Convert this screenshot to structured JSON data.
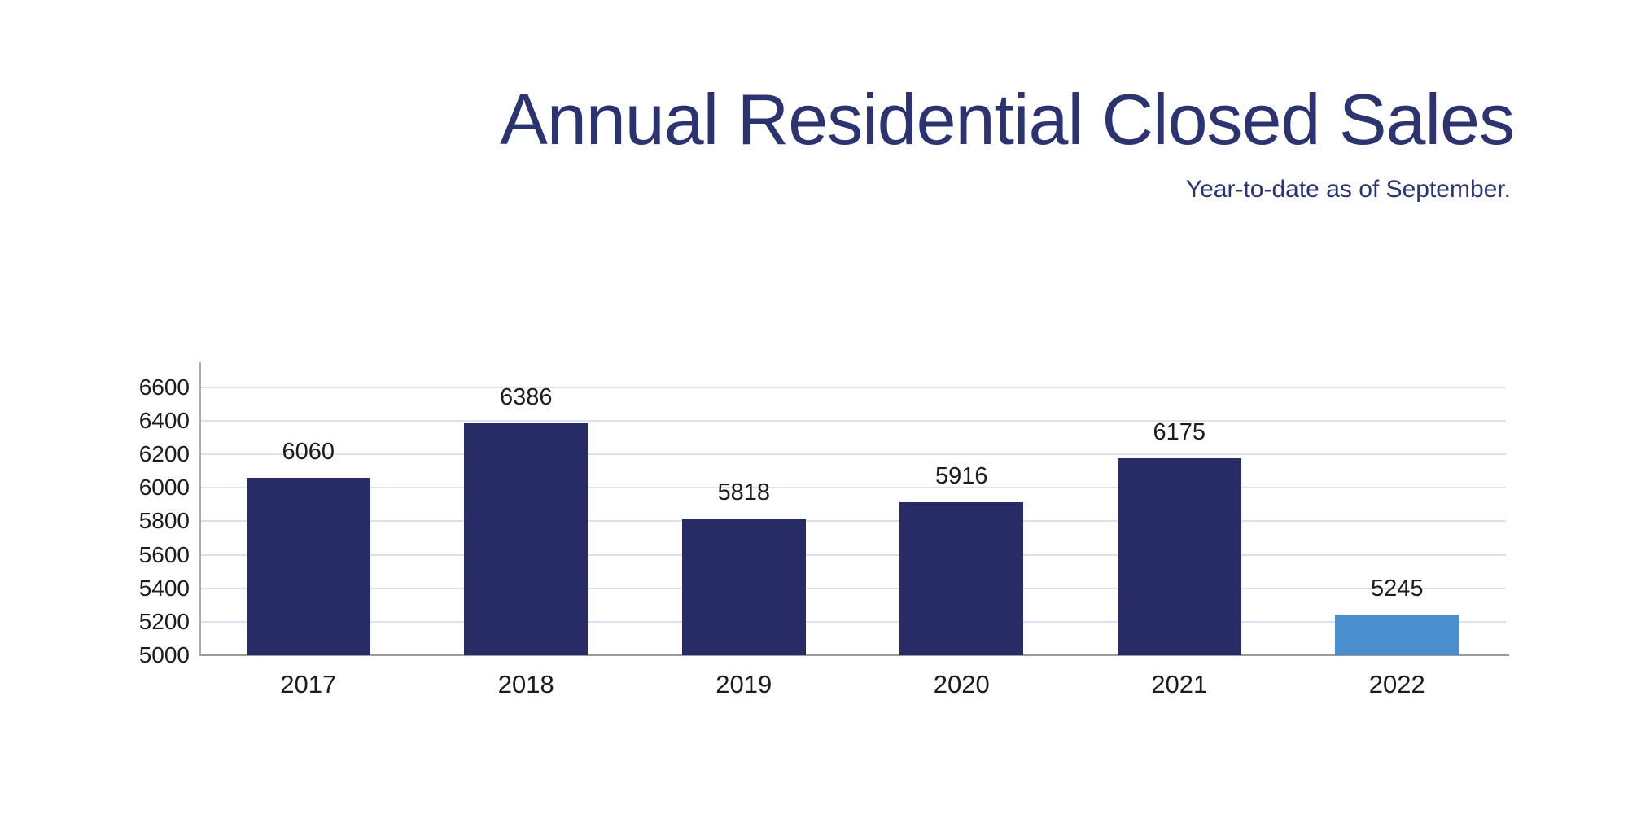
{
  "header": {
    "title": "Annual Residential Closed Sales",
    "subtitle": "Year-to-date as of September."
  },
  "chart_data": {
    "type": "bar",
    "title": "Annual Residential Closed Sales",
    "subtitle": "Year-to-date as of September.",
    "categories": [
      "2017",
      "2018",
      "2019",
      "2020",
      "2021",
      "2022"
    ],
    "values": [
      6060,
      6386,
      5818,
      5916,
      6175,
      5245
    ],
    "data_labels": [
      6060,
      6386,
      5818,
      5916,
      6175,
      5245
    ],
    "highlight_index": 5,
    "ylim": [
      5000,
      6750
    ],
    "yticks": [
      5000,
      5200,
      5400,
      5600,
      5800,
      6000,
      6200,
      6400,
      6600
    ],
    "grid": "horizontal-only",
    "legend_position": "none",
    "xlabel": "",
    "ylabel": "",
    "colors": {
      "bar_default": "#282c66",
      "bar_highlight": "#4c8fce",
      "title_text": "#2b3470",
      "subtitle_text": "#2b3470",
      "grid_line": "#dbe2ef",
      "baseline": "#9a9a9a",
      "axis_line": "#a9acb5",
      "tick_text": "#1c1c1c",
      "value_text": "#1c1c1c",
      "background": "#ffffff"
    }
  }
}
